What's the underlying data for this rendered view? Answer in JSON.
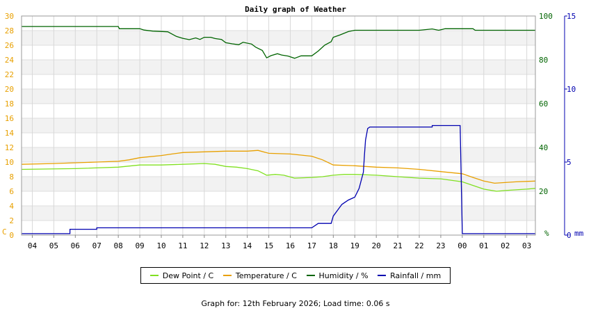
{
  "chart_data": {
    "type": "line",
    "title": "Daily graph of Weather",
    "x_tick_labels": [
      "04",
      "05",
      "06",
      "07",
      "08",
      "09",
      "10",
      "11",
      "12",
      "13",
      "14",
      "15",
      "16",
      "17",
      "18",
      "19",
      "20",
      "21",
      "22",
      "23",
      "00",
      "01",
      "02",
      "03"
    ],
    "x_hours": [
      4,
      5,
      6,
      7,
      8,
      9,
      10,
      11,
      12,
      13,
      14,
      15,
      16,
      17,
      18,
      19,
      20,
      21,
      22,
      23,
      24,
      25,
      26,
      27
    ],
    "x_range_hours": [
      3.5,
      27.4
    ],
    "y_left": {
      "unit_label": "C",
      "range": [
        0,
        30
      ],
      "ticks": [
        0,
        2,
        4,
        6,
        8,
        10,
        12,
        14,
        16,
        18,
        20,
        22,
        24,
        26,
        28,
        30
      ],
      "color": "#e8a000"
    },
    "y_right_humidity": {
      "unit_label": "%",
      "range": [
        0,
        100
      ],
      "ticks": [
        20,
        40,
        60,
        80,
        100
      ],
      "color": "#006400"
    },
    "y_right_rain": {
      "unit_label": "mm",
      "range": [
        0,
        15
      ],
      "ticks": [
        0,
        5,
        10,
        15
      ],
      "color": "#0000b0"
    },
    "grid": true,
    "series": [
      {
        "name": "Dew Point / C",
        "axis": "temp",
        "color": "#80e020",
        "points": [
          [
            3.5,
            9.0
          ],
          [
            6,
            9.1
          ],
          [
            8,
            9.3
          ],
          [
            9,
            9.6
          ],
          [
            10,
            9.6
          ],
          [
            11,
            9.7
          ],
          [
            12,
            9.8
          ],
          [
            12.5,
            9.7
          ],
          [
            13,
            9.4
          ],
          [
            13.5,
            9.3
          ],
          [
            14,
            9.1
          ],
          [
            14.5,
            8.8
          ],
          [
            14.9,
            8.2
          ],
          [
            15.3,
            8.3
          ],
          [
            15.7,
            8.2
          ],
          [
            16.2,
            7.8
          ],
          [
            17,
            7.9
          ],
          [
            17.5,
            8.0
          ],
          [
            18,
            8.2
          ],
          [
            18.5,
            8.3
          ],
          [
            19,
            8.3
          ],
          [
            20,
            8.2
          ],
          [
            21,
            8.0
          ],
          [
            22,
            7.8
          ],
          [
            23,
            7.7
          ],
          [
            24,
            7.3
          ],
          [
            24.5,
            6.8
          ],
          [
            25,
            6.3
          ],
          [
            25.6,
            6.0
          ],
          [
            26,
            6.1
          ],
          [
            27,
            6.3
          ],
          [
            27.4,
            6.4
          ]
        ]
      },
      {
        "name": "Temperature / C",
        "axis": "temp",
        "color": "#e8a000",
        "points": [
          [
            3.5,
            9.7
          ],
          [
            5,
            9.8
          ],
          [
            7,
            10.0
          ],
          [
            8,
            10.1
          ],
          [
            8.5,
            10.3
          ],
          [
            9,
            10.6
          ],
          [
            10,
            10.9
          ],
          [
            10.5,
            11.1
          ],
          [
            11,
            11.3
          ],
          [
            12,
            11.4
          ],
          [
            13,
            11.5
          ],
          [
            14,
            11.5
          ],
          [
            14.5,
            11.6
          ],
          [
            15,
            11.2
          ],
          [
            16,
            11.1
          ],
          [
            17,
            10.8
          ],
          [
            17.5,
            10.3
          ],
          [
            18,
            9.6
          ],
          [
            19,
            9.5
          ],
          [
            20,
            9.3
          ],
          [
            21,
            9.2
          ],
          [
            22,
            9.0
          ],
          [
            23,
            8.7
          ],
          [
            24,
            8.4
          ],
          [
            24.5,
            7.9
          ],
          [
            25,
            7.4
          ],
          [
            25.5,
            7.1
          ],
          [
            26,
            7.2
          ],
          [
            26.5,
            7.3
          ],
          [
            27.4,
            7.4
          ]
        ]
      },
      {
        "name": "Humidity / %",
        "axis": "humidity",
        "color": "#006400",
        "points": [
          [
            3.5,
            95.2
          ],
          [
            8,
            95.2
          ],
          [
            8.05,
            94.2
          ],
          [
            9,
            94.2
          ],
          [
            9.2,
            93.6
          ],
          [
            9.6,
            93.1
          ],
          [
            10.3,
            92.8
          ],
          [
            10.7,
            90.7
          ],
          [
            11,
            89.8
          ],
          [
            11.3,
            89.2
          ],
          [
            11.6,
            90.0
          ],
          [
            11.8,
            89.3
          ],
          [
            12,
            90.3
          ],
          [
            12.3,
            90.3
          ],
          [
            12.5,
            89.7
          ],
          [
            12.8,
            89.3
          ],
          [
            13,
            87.8
          ],
          [
            13.3,
            87.3
          ],
          [
            13.6,
            86.9
          ],
          [
            13.8,
            88.0
          ],
          [
            14.2,
            87.2
          ],
          [
            14.4,
            85.7
          ],
          [
            14.7,
            84.3
          ],
          [
            14.9,
            80.9
          ],
          [
            15.1,
            81.9
          ],
          [
            15.4,
            82.8
          ],
          [
            15.6,
            82.2
          ],
          [
            15.9,
            81.7
          ],
          [
            16.2,
            80.7
          ],
          [
            16.5,
            81.8
          ],
          [
            17,
            81.8
          ],
          [
            17.3,
            84.0
          ],
          [
            17.6,
            86.7
          ],
          [
            17.9,
            88.3
          ],
          [
            18,
            90.3
          ],
          [
            18.3,
            91.3
          ],
          [
            18.7,
            92.9
          ],
          [
            19,
            93.5
          ],
          [
            20,
            93.5
          ],
          [
            22,
            93.5
          ],
          [
            22.6,
            94.1
          ],
          [
            22.9,
            93.5
          ],
          [
            23.2,
            94.2
          ],
          [
            24,
            94.2
          ],
          [
            24.5,
            94.2
          ],
          [
            24.6,
            93.5
          ],
          [
            27.4,
            93.5
          ]
        ]
      },
      {
        "name": "Rainfall / mm",
        "axis": "rain",
        "color": "#0000b0",
        "points": [
          [
            3.5,
            0.1
          ],
          [
            5.75,
            0.1
          ],
          [
            5.75,
            0.4
          ],
          [
            7,
            0.4
          ],
          [
            7,
            0.5
          ],
          [
            17,
            0.5
          ],
          [
            17.3,
            0.8
          ],
          [
            17.9,
            0.8
          ],
          [
            18,
            1.3
          ],
          [
            18.2,
            1.7
          ],
          [
            18.4,
            2.1
          ],
          [
            18.7,
            2.4
          ],
          [
            19,
            2.6
          ],
          [
            19.2,
            3.2
          ],
          [
            19.4,
            4.3
          ],
          [
            19.45,
            5.5
          ],
          [
            19.5,
            6.5
          ],
          [
            19.6,
            7.3
          ],
          [
            19.7,
            7.4
          ],
          [
            20,
            7.4
          ],
          [
            22.6,
            7.4
          ],
          [
            22.6,
            7.5
          ],
          [
            23.9,
            7.5
          ],
          [
            24,
            0.1
          ],
          [
            27.4,
            0.1
          ]
        ]
      }
    ],
    "legend_placement": "bottom"
  },
  "axis_labels": {
    "left_unit": "C",
    "humidity_unit": "%",
    "rain_unit": "mm"
  },
  "footer_text": "Graph for: 12th February 2026; Load time: 0.06 s"
}
